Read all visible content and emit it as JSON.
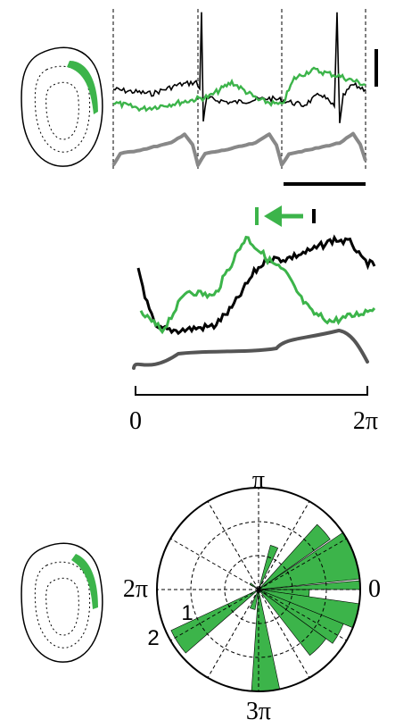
{
  "phase_axis": {
    "start": "0",
    "end": "2π"
  },
  "polar_plot": {
    "top": "π",
    "left": "2π",
    "right": "0",
    "bottom": "3π",
    "ring_labels": [
      "1",
      "2"
    ]
  }
}
